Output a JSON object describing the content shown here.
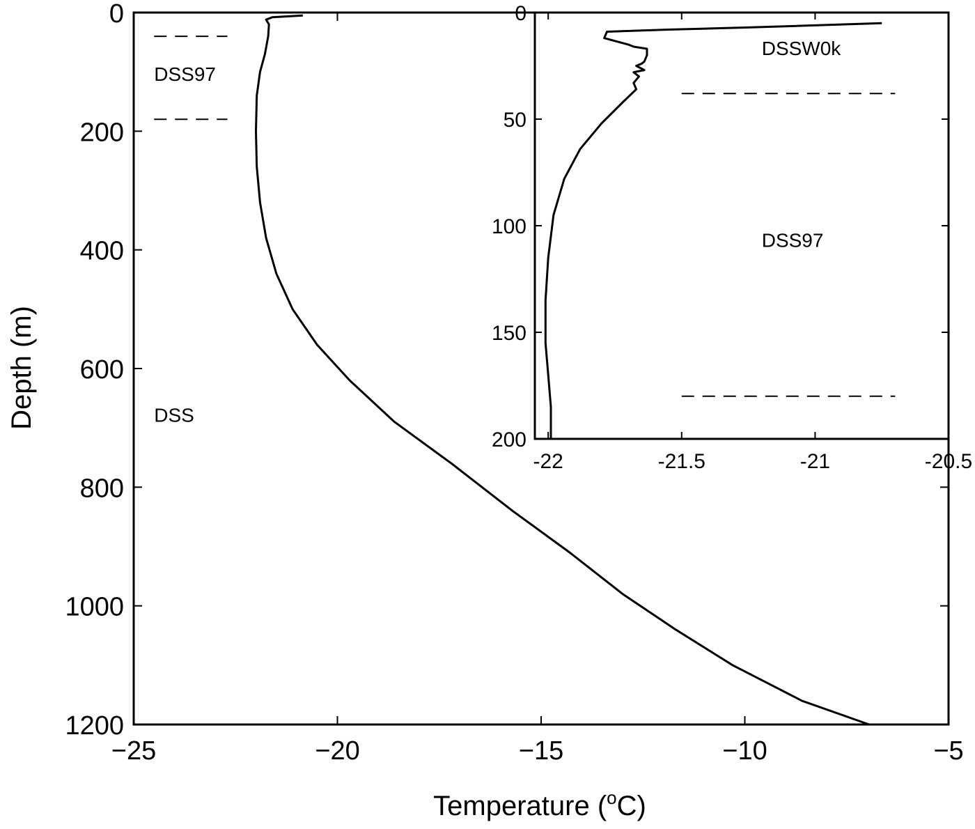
{
  "chart_data": [
    {
      "id": "main",
      "type": "line",
      "title": "",
      "xlabel": "Temperature (",
      "xlabel_sup": "o",
      "xlabel_end": "C)",
      "ylabel": "Depth (m)",
      "xlim": [
        -25,
        -5
      ],
      "ylim": [
        0,
        1200
      ],
      "y_inverted": true,
      "grid": false,
      "xticks": [
        -25,
        -20,
        -15,
        -10,
        -5
      ],
      "xtick_labels": [
        "−25",
        "−20",
        "−15",
        "−10",
        "−5"
      ],
      "yticks": [
        0,
        200,
        400,
        600,
        800,
        1000,
        1200
      ],
      "ytick_labels": [
        "0",
        "200",
        "400",
        "600",
        "800",
        "1000",
        "1200"
      ],
      "series": [
        {
          "x": [
            -20.85,
            -21.6,
            -21.75,
            -21.68,
            -21.7,
            -21.78,
            -21.9,
            -21.98,
            -22.0,
            -21.98,
            -21.9,
            -21.75,
            -21.5,
            -21.1,
            -20.5,
            -19.7,
            -18.6,
            -17.2,
            -15.7,
            -14.3,
            -13.0,
            -11.7,
            -10.3,
            -8.6,
            -6.95
          ],
          "y": [
            5,
            8,
            12,
            20,
            40,
            70,
            100,
            140,
            200,
            260,
            320,
            380,
            440,
            500,
            560,
            620,
            690,
            760,
            840,
            910,
            980,
            1040,
            1100,
            1160,
            1200
          ]
        }
      ],
      "boundaries": [
        {
          "y": 40,
          "x_range": [
            -24.5,
            -22.7
          ]
        },
        {
          "y": 180,
          "x_range": [
            -24.5,
            -22.7
          ]
        }
      ],
      "annotations": [
        {
          "text": "DSS97",
          "x": -24.5,
          "y": 115
        },
        {
          "text": "DSS",
          "x": -24.5,
          "y": 690
        }
      ]
    },
    {
      "id": "inset",
      "type": "line",
      "xlim": [
        -22.05,
        -20.5
      ],
      "ylim": [
        0,
        200
      ],
      "y_inverted": true,
      "grid": false,
      "xticks": [
        -22,
        -21.5,
        -21,
        -20.5
      ],
      "xtick_labels": [
        "-22",
        "-21.5",
        "-21",
        "-20.5"
      ],
      "yticks": [
        0,
        50,
        100,
        150,
        200
      ],
      "ytick_labels": [
        "0",
        "50",
        "100",
        "150",
        "200"
      ],
      "series": [
        {
          "x": [
            -20.75,
            -21.25,
            -21.55,
            -21.78,
            -21.79,
            -21.7,
            -21.68,
            -21.63,
            -21.63,
            -21.64,
            -21.65,
            -21.67,
            -21.64,
            -21.68,
            -21.66,
            -21.68,
            -21.67,
            -21.72,
            -21.8,
            -21.88,
            -21.94,
            -21.98,
            -22.0,
            -22.01,
            -22.01,
            -22.0,
            -21.99,
            -21.99
          ],
          "y": [
            5,
            7,
            8,
            9,
            12,
            15,
            16,
            17,
            20,
            23,
            24,
            25,
            27,
            28,
            30,
            33,
            36,
            42,
            52,
            64,
            78,
            95,
            115,
            135,
            155,
            170,
            185,
            200
          ]
        }
      ],
      "boundaries": [
        {
          "y": 38,
          "x_range": [
            -21.5,
            -20.7
          ]
        },
        {
          "y": 180,
          "x_range": [
            -21.5,
            -20.7
          ]
        }
      ],
      "annotations": [
        {
          "text": "DSSW0k",
          "x": -21.2,
          "y": 20
        },
        {
          "text": "DSS97",
          "x": -21.2,
          "y": 110
        }
      ]
    }
  ]
}
